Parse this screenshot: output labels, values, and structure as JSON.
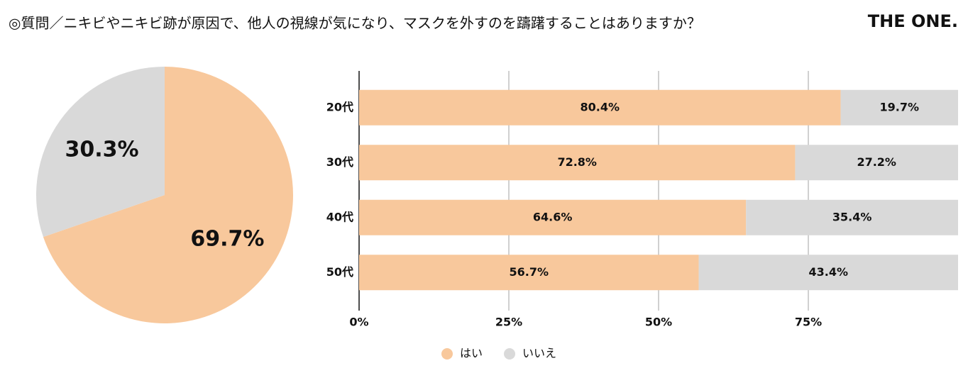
{
  "header": {
    "title": "◎質問／ニキビやニキビ跡が原因で、他人の視線が気になり、マスクを外すのを躊躇することはありますか？",
    "brand": "THE ONE."
  },
  "chart_data": [
    {
      "type": "pie",
      "values": [
        69.7,
        30.3
      ],
      "value_labels": [
        "69.7%",
        "30.3%"
      ],
      "colors": [
        "#f8c89c",
        "#d9d9d9"
      ]
    },
    {
      "type": "stacked-bar",
      "orientation": "horizontal",
      "categories": [
        "20代",
        "30代",
        "40代",
        "50代"
      ],
      "series": [
        {
          "name": "はい",
          "color": "#f8c89c",
          "values": [
            80.4,
            72.8,
            64.6,
            56.7
          ],
          "value_labels": [
            "80.4%",
            "72.8%",
            "64.6%",
            "56.7%"
          ]
        },
        {
          "name": "いいえ",
          "color": "#d9d9d9",
          "values": [
            19.7,
            27.2,
            35.4,
            43.4
          ],
          "value_labels": [
            "19.7%",
            "27.2%",
            "35.4%",
            "43.4%"
          ]
        }
      ],
      "xlim": [
        0,
        100
      ],
      "xticks": [
        {
          "value": 0,
          "label": "0%"
        },
        {
          "value": 25,
          "label": "25%"
        },
        {
          "value": 50,
          "label": "50%"
        },
        {
          "value": 75,
          "label": "75%"
        }
      ],
      "grid": true,
      "legend": "bottom"
    }
  ]
}
